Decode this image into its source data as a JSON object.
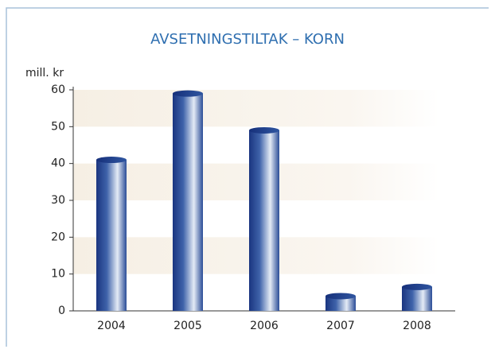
{
  "chart_data": {
    "type": "bar",
    "title": "AVSETNINGSTILTAK – KORN",
    "y_label": "mill. kr",
    "categories": [
      "2004",
      "2005",
      "2006",
      "2007",
      "2008"
    ],
    "values": [
      41,
      59,
      49,
      4,
      6.5
    ],
    "color": "#1f3f8f",
    "ylim": [
      0,
      60
    ],
    "yticks": [
      0,
      10,
      20,
      30,
      40,
      50,
      60
    ],
    "grid": true
  }
}
